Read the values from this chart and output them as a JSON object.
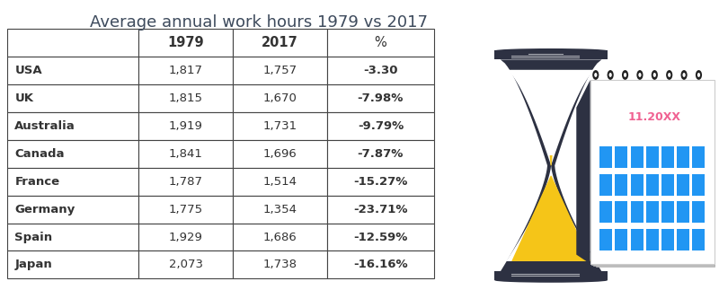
{
  "title": "Average annual work hours 1979 vs 2017",
  "title_fontsize": 13,
  "title_color": "#3d4a5c",
  "columns": [
    "",
    "1979",
    "2017",
    "%"
  ],
  "rows": [
    [
      "USA",
      "1,817",
      "1,757",
      "-3.30"
    ],
    [
      "UK",
      "1,815",
      "1,670",
      "-7.98%"
    ],
    [
      "Australia",
      "1,919",
      "1,731",
      "-9.79%"
    ],
    [
      "Canada",
      "1,841",
      "1,696",
      "-7.87%"
    ],
    [
      "France",
      "1,787",
      "1,514",
      "-15.27%"
    ],
    [
      "Germany",
      "1,775",
      "1,354",
      "-23.71%"
    ],
    [
      "Spain",
      "1,929",
      "1,686",
      "-12.59%"
    ],
    [
      "Japan",
      "2,073",
      "1,738",
      "-16.16%"
    ]
  ],
  "header_fontsize": 10.5,
  "cell_fontsize": 9.5,
  "bg_color": "#ffffff",
  "border_color": "#444444",
  "text_color": "#333333",
  "sand_color": "#f5c518",
  "hourglass_dark": "#2d3142",
  "calendar_blue": "#2196F3",
  "calendar_pink": "#f06292",
  "calendar_dark": "#222222"
}
